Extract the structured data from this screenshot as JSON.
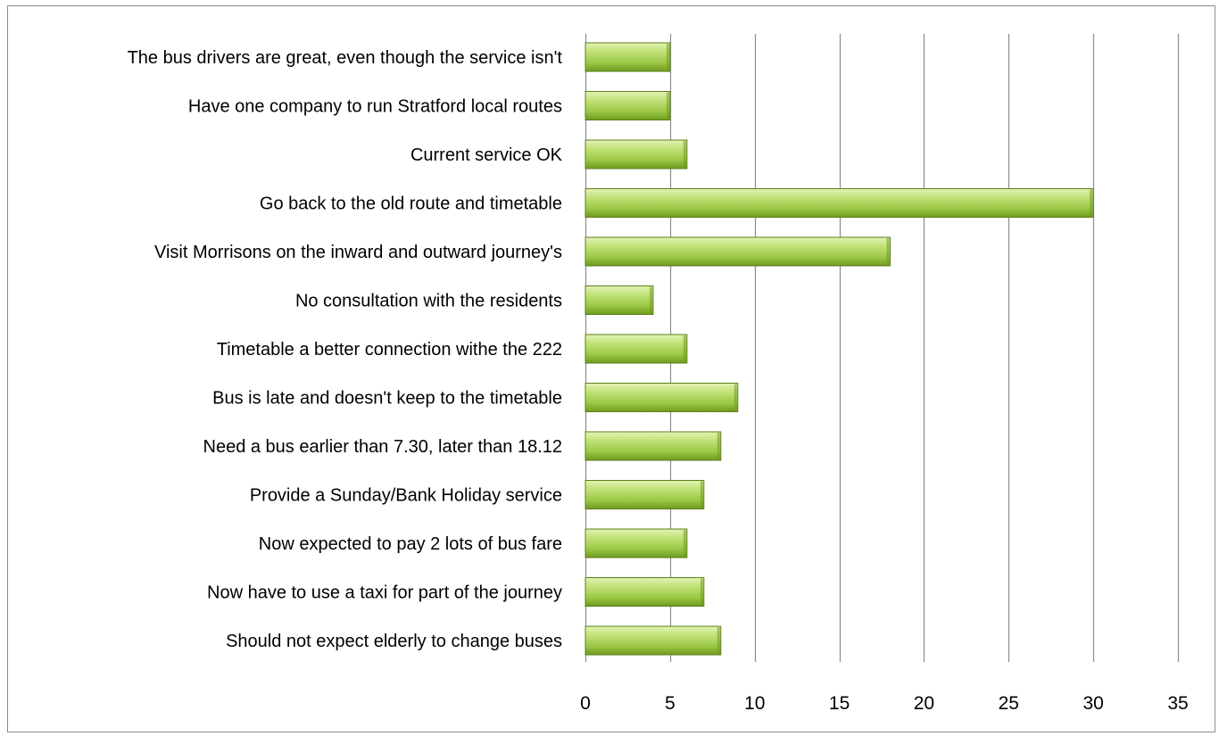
{
  "chart_data": {
    "type": "bar",
    "orientation": "horizontal",
    "title": "",
    "xlabel": "",
    "ylabel": "",
    "categories": [
      "The bus drivers are great, even though the service isn't",
      "Have one company to run Stratford local routes",
      "Current service OK",
      "Go back to the old route and timetable",
      "Visit Morrisons on the inward and outward journey's",
      "No consultation with the residents",
      "Timetable a better connection withe the 222",
      "Bus is late and doesn't keep to the timetable",
      "Need a bus earlier than 7.30, later than 18.12",
      "Provide a Sunday/Bank Holiday service",
      "Now expected to pay 2 lots of bus fare",
      "Now have to use a taxi for part of the journey",
      "Should not expect elderly to change buses"
    ],
    "values": [
      5,
      5,
      6,
      30,
      18,
      4,
      6,
      9,
      8,
      7,
      6,
      7,
      8
    ],
    "xlim": [
      0,
      35
    ],
    "xticks": [
      0,
      5,
      10,
      15,
      20,
      25,
      30,
      35
    ],
    "grid": "vertical",
    "legend": "none",
    "colors": {
      "bar_light": "#d7ec9a",
      "bar_mid": "#a4cf4c",
      "bar_dark": "#6f9a1f",
      "bar_border": "#5d7f1b",
      "grid": "#8c8c8c",
      "frame": "#8c8c8c"
    }
  }
}
